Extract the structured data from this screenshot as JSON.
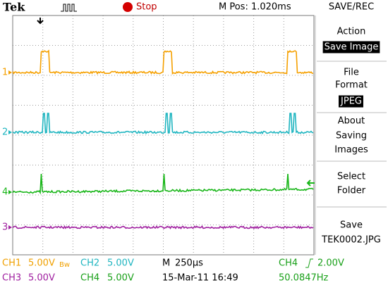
{
  "header": {
    "brand": "Tek",
    "status": "Stop",
    "position": "M Pos: 1.020ms"
  },
  "menu": {
    "title": "SAVE/REC",
    "items": [
      {
        "lines": [
          "Action"
        ],
        "value": "Save Image"
      },
      {
        "lines": [
          "File",
          "Format"
        ],
        "value": "JPEG"
      },
      {
        "lines": [
          "About",
          "Saving",
          "Images"
        ]
      },
      {
        "lines": [
          "Select",
          "Folder"
        ]
      },
      {
        "lines": [
          "Save"
        ],
        "value": "TEK0002.JPG"
      }
    ]
  },
  "channels": {
    "markers": [
      "1",
      "2",
      "4",
      "3"
    ]
  },
  "status_bar": {
    "ch1": {
      "name": "CH1",
      "scale": "5.00V",
      "flag": "Bw"
    },
    "ch2": {
      "name": "CH2",
      "scale": "5.00V"
    },
    "ch3": {
      "name": "CH3",
      "scale": "5.00V"
    },
    "ch4": {
      "name": "CH4",
      "scale": "5.00V"
    },
    "timebase": {
      "name": "M",
      "scale": "250µs"
    },
    "trigger": {
      "source": "CH4",
      "level": "2.00V"
    },
    "datetime": "15-Mar-11 16:49",
    "frequency": "50.0847Hz"
  }
}
